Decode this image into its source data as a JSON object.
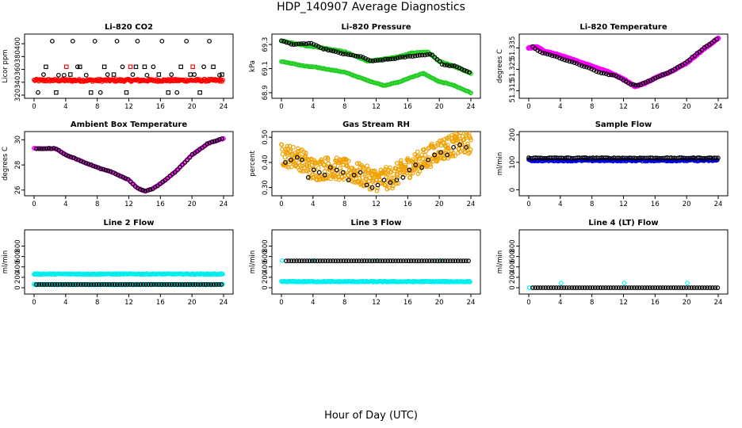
{
  "title": "HDP_140907  Average Diagnostics",
  "xlabel": "Hour of Day (UTC)",
  "x_ticks": [
    "0",
    "4",
    "8",
    "12",
    "16",
    "20",
    "24"
  ],
  "chart_data": [
    {
      "type": "scatter",
      "title": "Li-820 CO2",
      "ylabel": "Licor ppm",
      "xlim": [
        0,
        24
      ],
      "ylim": [
        320,
        410
      ],
      "yticks": [
        {
          "v": 320,
          "t": "320"
        },
        {
          "v": 340,
          "t": "340"
        },
        {
          "v": 360,
          "t": "360"
        },
        {
          "v": 380,
          "t": "380"
        },
        {
          "v": 400,
          "t": "400"
        }
      ],
      "series": [
        {
          "color": "#ff0000",
          "marker": "circle",
          "kind": "band",
          "x0": 0,
          "x1": 24,
          "step": 0.1,
          "ylow": 341,
          "yhigh": 345
        },
        {
          "color": "#000000",
          "marker": "circle",
          "x": [
            0.5,
            1.2,
            2.3,
            3.1,
            3.8,
            4.9,
            5.5,
            6.6,
            7.7,
            8.4,
            9.3,
            10.5,
            11.2,
            12.5,
            13.1,
            14.3,
            15.1,
            16.2,
            17.4,
            18.1,
            19.3,
            20.3,
            21.5,
            22.2,
            23.5
          ],
          "y": [
            324,
            352,
            404,
            351,
            351,
            404,
            364,
            351,
            404,
            324,
            352,
            404,
            364,
            352,
            404,
            351,
            364,
            404,
            352,
            324,
            404,
            352,
            364,
            404,
            351
          ]
        },
        {
          "color": "#000000",
          "marker": "square",
          "x": [
            1.5,
            2.8,
            4.6,
            5.8,
            7.2,
            8.9,
            10.1,
            11.7,
            12.9,
            14.0,
            15.8,
            17.0,
            18.6,
            19.8,
            21.0,
            22.7,
            23.8
          ],
          "y": [
            364,
            324,
            352,
            364,
            324,
            364,
            352,
            324,
            364,
            364,
            352,
            324,
            364,
            352,
            324,
            364,
            352
          ]
        },
        {
          "color": "#ff0000",
          "marker": "square",
          "x": [
            4.1,
            12.2,
            20.1
          ],
          "y": [
            364,
            364,
            364
          ]
        }
      ]
    },
    {
      "type": "scatter",
      "title": "Li-820 Pressure",
      "ylabel": "kPa",
      "xlim": [
        0,
        24
      ],
      "ylim": [
        68.88,
        69.36
      ],
      "yticks": [
        {
          "v": 68.9,
          "t": "68.9"
        },
        {
          "v": 69.1,
          "t": "69.1"
        },
        {
          "v": 69.3,
          "t": "69.3"
        }
      ],
      "series": [
        {
          "color": "#22cc22",
          "marker": "circle",
          "kind": "curve",
          "x": [
            0,
            3,
            4.5,
            8,
            11,
            13,
            15,
            16.5,
            18.5,
            20,
            21.5,
            24
          ],
          "y": [
            69.33,
            69.29,
            69.28,
            69.24,
            69.16,
            69.18,
            69.2,
            69.23,
            69.24,
            69.16,
            69.13,
            69.06
          ]
        },
        {
          "color": "#22cc22",
          "marker": "circle",
          "kind": "curve",
          "x": [
            0,
            3,
            4.5,
            8,
            11,
            13,
            15,
            16.5,
            18,
            20,
            21.5,
            24
          ],
          "y": [
            69.16,
            69.12,
            69.11,
            69.07,
            69.0,
            68.96,
            68.99,
            69.03,
            69.06,
            68.99,
            68.97,
            68.9
          ]
        },
        {
          "color": "#000000",
          "marker": "circle",
          "kind": "curve",
          "x": [
            0,
            1.5,
            3.8,
            5,
            8,
            10,
            11.5,
            12.5,
            14,
            16,
            17.5,
            19,
            20.5,
            22,
            23.8
          ],
          "y": [
            69.33,
            69.3,
            69.31,
            69.27,
            69.22,
            69.2,
            69.16,
            69.17,
            69.18,
            69.2,
            69.21,
            69.22,
            69.13,
            69.12,
            69.07
          ]
        }
      ]
    },
    {
      "type": "scatter",
      "title": "Li-820 Temperature",
      "ylabel": "degrees C",
      "xlim": [
        0,
        24
      ],
      "ylim": [
        51.313,
        51.34
      ],
      "yticks": [
        {
          "v": 51.315,
          "t": "51.315"
        },
        {
          "v": 51.325,
          "t": "51.325"
        },
        {
          "v": 51.335,
          "t": "51.335"
        }
      ],
      "series": [
        {
          "color": "#ff00ff",
          "marker": "circle",
          "kind": "curve",
          "width": 2.2,
          "x": [
            0,
            1,
            2,
            4,
            6,
            8,
            10,
            12,
            13.5,
            15,
            16,
            18,
            20,
            22,
            24
          ],
          "y": [
            51.335,
            51.3355,
            51.3335,
            51.3315,
            51.329,
            51.3265,
            51.324,
            51.3205,
            51.317,
            51.319,
            51.321,
            51.324,
            51.328,
            51.334,
            51.3395
          ]
        },
        {
          "color": "#000000",
          "marker": "circle",
          "kind": "curve",
          "x": [
            0.5,
            1.5,
            3,
            5,
            7,
            9,
            11,
            13,
            14,
            16,
            18,
            20,
            22,
            23.8
          ],
          "y": [
            51.3355,
            51.333,
            51.3315,
            51.329,
            51.3265,
            51.3235,
            51.322,
            51.318,
            51.3175,
            51.321,
            51.324,
            51.3285,
            51.3345,
            51.339
          ]
        }
      ]
    },
    {
      "type": "scatter",
      "title": "Ambient Box Temperature",
      "ylabel": "degrees C",
      "xlim": [
        0,
        24
      ],
      "ylim": [
        25.8,
        30.4
      ],
      "yticks": [
        {
          "v": 26,
          "t": "26"
        },
        {
          "v": 28,
          "t": "28"
        },
        {
          "v": 30,
          "t": "30"
        }
      ],
      "series": [
        {
          "color": "#ff00ff",
          "marker": "circle",
          "kind": "curve",
          "x": [
            0,
            2.5,
            3,
            4,
            6,
            8,
            10,
            12,
            13,
            14,
            15,
            16,
            18,
            20,
            22,
            24
          ],
          "y": [
            29.3,
            29.3,
            29.2,
            28.8,
            28.3,
            27.8,
            27.4,
            26.8,
            26.2,
            25.9,
            26.1,
            26.5,
            27.5,
            28.8,
            29.7,
            30.1
          ]
        },
        {
          "color": "#000000",
          "marker": "circle",
          "kind": "curve",
          "x": [
            0.3,
            2.5,
            3,
            4,
            6,
            8,
            10,
            12,
            13,
            14,
            15,
            16,
            18,
            20,
            22,
            23.8
          ],
          "y": [
            29.3,
            29.3,
            29.2,
            28.8,
            28.3,
            27.8,
            27.4,
            26.8,
            26.2,
            25.9,
            26.1,
            26.5,
            27.5,
            28.8,
            29.7,
            30.1
          ]
        }
      ]
    },
    {
      "type": "scatter",
      "title": "Gas Stream RH",
      "ylabel": "percent",
      "xlim": [
        0,
        24
      ],
      "ylim": [
        0.28,
        0.51
      ],
      "yticks": [
        {
          "v": 0.3,
          "t": "0.30"
        },
        {
          "v": 0.4,
          "t": "0.40"
        },
        {
          "v": 0.5,
          "t": "0.50"
        }
      ],
      "series": [
        {
          "color": "#f0a000",
          "marker": "circle",
          "kind": "noisy",
          "spread": 0.045,
          "x": [
            0,
            2,
            3,
            4,
            6,
            8,
            10,
            12,
            14,
            16,
            18,
            20,
            22,
            24
          ],
          "y": [
            0.43,
            0.42,
            0.4,
            0.37,
            0.38,
            0.37,
            0.35,
            0.33,
            0.34,
            0.38,
            0.41,
            0.45,
            0.47,
            0.48
          ]
        },
        {
          "color": "#000000",
          "marker": "circle",
          "x": [
            0.5,
            1.2,
            2,
            2.6,
            3.4,
            4.1,
            4.8,
            5.5,
            6.2,
            7,
            7.8,
            8.5,
            9.2,
            10,
            10.8,
            11.5,
            12.2,
            13,
            13.8,
            14.6,
            15.4,
            16.2,
            17,
            17.8,
            18.6,
            19.4,
            20.2,
            21,
            21.8,
            22.6,
            23.4
          ],
          "y": [
            0.4,
            0.41,
            0.42,
            0.41,
            0.34,
            0.37,
            0.36,
            0.35,
            0.38,
            0.37,
            0.36,
            0.33,
            0.35,
            0.36,
            0.31,
            0.3,
            0.31,
            0.33,
            0.32,
            0.33,
            0.34,
            0.37,
            0.39,
            0.38,
            0.41,
            0.43,
            0.44,
            0.43,
            0.46,
            0.47,
            0.46
          ]
        }
      ]
    },
    {
      "type": "scatter",
      "title": "Sample Flow",
      "ylabel": "ml/min",
      "xlim": [
        0,
        24
      ],
      "ylim": [
        -10,
        200
      ],
      "yticks": [
        {
          "v": 0,
          "t": "0"
        },
        {
          "v": 100,
          "t": "100"
        },
        {
          "v": 200,
          "t": "200"
        }
      ],
      "series": [
        {
          "color": "#0000dd",
          "marker": "circle",
          "kind": "band",
          "x0": 0,
          "x1": 24,
          "step": 0.12,
          "ylow": 104,
          "yhigh": 110
        },
        {
          "color": "#000000",
          "marker": "circle",
          "kind": "band",
          "x0": 0,
          "x1": 24,
          "step": 0.22,
          "ylow": 114,
          "yhigh": 117
        }
      ]
    },
    {
      "type": "scatter",
      "title": "Line 2 Flow",
      "ylabel": "ml/min",
      "xlim": [
        0,
        24
      ],
      "ylim": [
        -60,
        1050
      ],
      "yticks": [
        {
          "v": 0,
          "t": "0"
        },
        {
          "v": 200,
          "t": "200"
        },
        {
          "v": 400,
          "t": "400"
        },
        {
          "v": 600,
          "t": "600"
        },
        {
          "v": 800,
          "t": "800"
        }
      ],
      "series": [
        {
          "color": "#00eeee",
          "marker": "circle",
          "kind": "band",
          "x0": 0,
          "x1": 24,
          "step": 0.1,
          "ylow": 255,
          "yhigh": 272
        },
        {
          "color": "#00eeee",
          "marker": "circle",
          "kind": "band",
          "x0": 0,
          "x1": 24,
          "step": 0.12,
          "ylow": 55,
          "yhigh": 68
        },
        {
          "color": "#000000",
          "marker": "circle",
          "kind": "band",
          "x0": 0.3,
          "x1": 24,
          "step": 0.33,
          "ylow": 62,
          "yhigh": 62
        }
      ]
    },
    {
      "type": "scatter",
      "title": "Line 3 Flow",
      "ylabel": "ml/min",
      "xlim": [
        0,
        24
      ],
      "ylim": [
        -60,
        1050
      ],
      "yticks": [
        {
          "v": 0,
          "t": "0"
        },
        {
          "v": 200,
          "t": "200"
        },
        {
          "v": 400,
          "t": "400"
        },
        {
          "v": 600,
          "t": "600"
        },
        {
          "v": 800,
          "t": "800"
        }
      ],
      "series": [
        {
          "color": "#00eeee",
          "marker": "circle",
          "kind": "band",
          "x0": 0,
          "x1": 24,
          "step": 0.1,
          "ylow": 110,
          "yhigh": 126
        },
        {
          "color": "#00eeee",
          "marker": "circle",
          "x": [
            0.1,
            4.1,
            12.1,
            20.1
          ],
          "y": [
            520,
            520,
            520,
            520
          ]
        },
        {
          "color": "#000000",
          "marker": "circle",
          "kind": "band",
          "x0": 0.6,
          "x1": 24,
          "step": 0.33,
          "ylow": 515,
          "yhigh": 515
        }
      ]
    },
    {
      "type": "scatter",
      "title": "Line 4 (LT) Flow",
      "ylabel": "ml/min",
      "xlim": [
        0,
        24
      ],
      "ylim": [
        -60,
        1050
      ],
      "yticks": [
        {
          "v": 0,
          "t": "0"
        },
        {
          "v": 200,
          "t": "200"
        },
        {
          "v": 400,
          "t": "400"
        },
        {
          "v": 600,
          "t": "600"
        },
        {
          "v": 800,
          "t": "800"
        }
      ],
      "series": [
        {
          "color": "#00eeee",
          "marker": "circle",
          "x": [
            0.1,
            4.1,
            12.1,
            20.1
          ],
          "y": [
            0,
            90,
            90,
            90
          ]
        },
        {
          "color": "#000000",
          "marker": "circle",
          "kind": "band",
          "x0": 0.5,
          "x1": 24,
          "step": 0.33,
          "ylow": 0,
          "yhigh": 0
        }
      ]
    }
  ]
}
